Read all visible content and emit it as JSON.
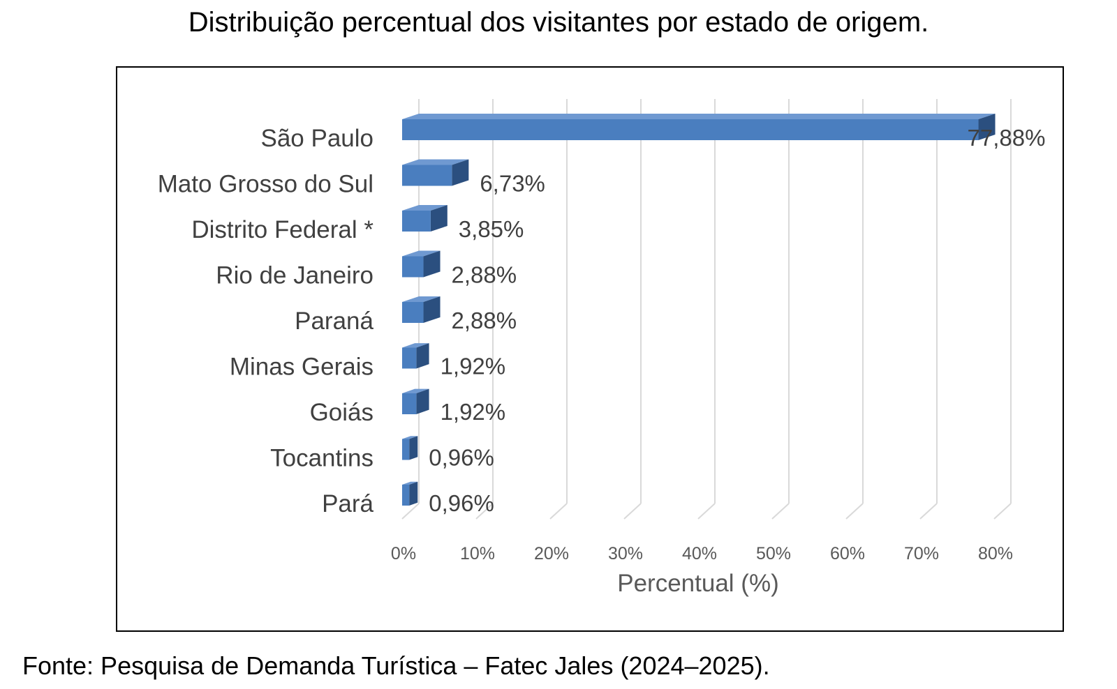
{
  "chart_data": {
    "type": "bar",
    "orientation": "horizontal",
    "title": "Distribuição percentual dos visitantes por estado de origem.",
    "categories": [
      "São Paulo",
      "Mato Grosso do Sul",
      "Distrito Federal *",
      "Rio de Janeiro",
      "Paraná",
      "Minas Gerais",
      "Goiás",
      "Tocantins",
      "Pará"
    ],
    "values": [
      77.88,
      6.73,
      3.85,
      2.88,
      2.88,
      1.92,
      1.92,
      0.96,
      0.96
    ],
    "value_labels": [
      "77,88%",
      "6,73%",
      "3,85%",
      "2,88%",
      "2,88%",
      "1,92%",
      "1,92%",
      "0,96%",
      "0,96%"
    ],
    "xlabel": "Percentual (%)",
    "ylabel": "",
    "xlim": [
      0,
      80
    ],
    "xticks": [
      "0%",
      "10%",
      "20%",
      "30%",
      "40%",
      "50%",
      "60%",
      "70%",
      "80%"
    ],
    "grid": true,
    "style": "3d",
    "bar_color": "#4a7ebf"
  },
  "source": "Fonte: Pesquisa de Demanda Turística – Fatec Jales (2024–2025)."
}
